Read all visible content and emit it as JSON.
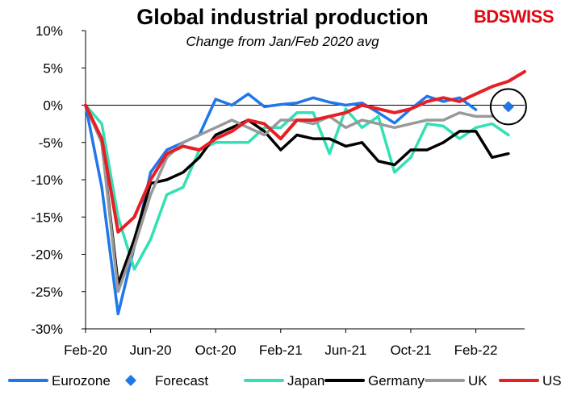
{
  "chart_data": {
    "type": "line",
    "title": "Global industrial production",
    "subtitle": "Change from Jan/Feb 2020 avg",
    "logo": "BDSWISS",
    "months": [
      "Feb-20",
      "Mar-20",
      "Apr-20",
      "May-20",
      "Jun-20",
      "Jul-20",
      "Aug-20",
      "Sep-20",
      "Oct-20",
      "Nov-20",
      "Dec-20",
      "Jan-21",
      "Feb-21",
      "Mar-21",
      "Apr-21",
      "May-21",
      "Jun-21",
      "Jul-21",
      "Aug-21",
      "Sep-21",
      "Oct-21",
      "Nov-21",
      "Dec-21",
      "Jan-22",
      "Feb-22",
      "Mar-22",
      "Apr-22",
      "May-22"
    ],
    "x_tick_labels": [
      "Feb-20",
      "Jun-20",
      "Oct-20",
      "Feb-21",
      "Jun-21",
      "Oct-21",
      "Feb-22"
    ],
    "y_tick_labels": [
      "10%",
      "5%",
      "0%",
      "-5%",
      "-10%",
      "-15%",
      "-20%",
      "-25%",
      "-30%"
    ],
    "ylim": [
      -30,
      10
    ],
    "y_ticks": [
      10,
      5,
      0,
      -5,
      -10,
      -15,
      -20,
      -25,
      -30
    ],
    "grid": false,
    "legend_position": "bottom",
    "series": [
      {
        "name": "Eurozone",
        "color": "#1f77ea",
        "values": [
          0,
          -11,
          -28,
          -19,
          -9,
          -6,
          -5,
          -4,
          0.8,
          0,
          1.5,
          -0.2,
          0.1,
          0.3,
          1,
          0.4,
          0,
          0.3,
          -1,
          -2.4,
          -0.5,
          1.2,
          0.5,
          1,
          -0.6
        ]
      },
      {
        "name": "Japan",
        "color": "#33e0b4",
        "values": [
          0,
          -2.5,
          -15,
          -22,
          -18,
          -12,
          -11,
          -6,
          -5,
          -5,
          -5,
          -3,
          -3,
          -1,
          -1,
          -6.5,
          -0.5,
          -3,
          -1.5,
          -9,
          -7,
          -2.5,
          -2.8,
          -4.5,
          -3,
          -2.5,
          -4
        ]
      },
      {
        "name": "Germany",
        "color": "#000000",
        "values": [
          0,
          -5,
          -24,
          -18,
          -10.5,
          -10,
          -9,
          -7,
          -4,
          -3,
          -2,
          -3.5,
          -6,
          -4,
          -4.5,
          -4.5,
          -5.5,
          -5,
          -7.5,
          -8,
          -6,
          -6,
          -5,
          -3.5,
          -3.5,
          -7,
          -6.5
        ]
      },
      {
        "name": "UK",
        "color": "#999999",
        "values": [
          0,
          -5,
          -25,
          -19,
          -12,
          -7,
          -5,
          -4,
          -3,
          -2,
          -3,
          -4,
          -2,
          -2,
          -2.5,
          -1.5,
          -3,
          -2,
          -2.5,
          -3,
          -2.5,
          -2,
          -2,
          -1,
          -1.5,
          -1.5
        ]
      },
      {
        "name": "US",
        "color": "#e81e25",
        "values": [
          0,
          -4.5,
          -17,
          -15,
          -10,
          -6.5,
          -5.5,
          -6,
          -4.5,
          -3.5,
          -2,
          -2.5,
          -4.5,
          -2,
          -2,
          -1.5,
          -1,
          0,
          -0.5,
          -1,
          -0.5,
          0.5,
          1,
          0.5,
          1.5,
          2.5,
          3.2,
          4.5
        ]
      }
    ],
    "forecast": {
      "name": "Forecast",
      "color": "#1f77ea",
      "month": "Apr-22",
      "value": -0.2
    },
    "legend": [
      "Eurozone",
      "Forecast",
      "Japan",
      "Germany",
      "UK",
      "US"
    ],
    "annotation": "circle around forecast point"
  }
}
